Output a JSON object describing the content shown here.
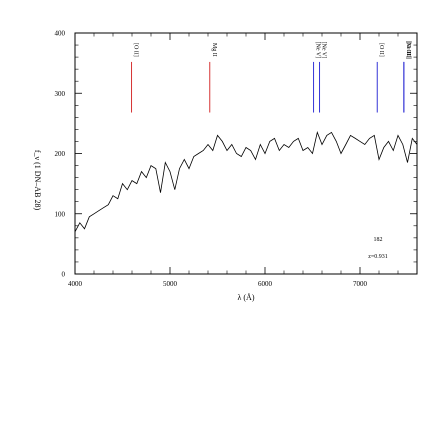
{
  "chart_data": {
    "type": "line",
    "title": "",
    "xlabel": "λ (Å)",
    "ylabel": "f_ν (1 DN–AB 28)",
    "xlim": [
      4000,
      7600
    ],
    "ylim": [
      0,
      400
    ],
    "x_ticks": [
      4000,
      5000,
      6000,
      7000
    ],
    "x_tick_labels": [
      "4000",
      "5000",
      "6000",
      "7000"
    ],
    "y_ticks": [
      0,
      100,
      200,
      300,
      400
    ],
    "y_tick_labels": [
      "0",
      "100",
      "200",
      "300",
      "400"
    ],
    "grid": false,
    "annotations": {
      "object_id": "182",
      "redshift": "z=0.931"
    },
    "line_colors": {
      "blue": "#0000cc",
      "red": "#cc0000",
      "spectrum": "#000000",
      "axes": "#000000"
    },
    "lines": [
      {
        "label": "[O II]",
        "x": 4596,
        "color": "red"
      },
      {
        "label": "Mg II",
        "x": 5419,
        "color": "red"
      },
      {
        "label": "[Ne V]",
        "x": 6512,
        "color": "blue"
      },
      {
        "label": "[Ne V]",
        "x": 6575,
        "color": "blue"
      },
      {
        "label": "[O II]",
        "x": 7181,
        "color": "blue"
      },
      {
        "label": "[O III]",
        "x": 7462,
        "color": "blue"
      },
      {
        "label": "[Ne III]",
        "x": 7461,
        "color": "blue"
      }
    ],
    "series": [
      {
        "x": [
          4000,
          4050,
          4100,
          4150,
          4200,
          4250,
          4300,
          4350,
          4400,
          4450,
          4500,
          4550,
          4600,
          4650,
          4700,
          4750,
          4800,
          4850,
          4900,
          4950,
          5000,
          5050,
          5100,
          5150,
          5200,
          5250,
          5300,
          5350,
          5400,
          5450,
          5500,
          5550,
          5600,
          5650,
          5700,
          5750,
          5800,
          5850,
          5900,
          5950,
          6000,
          6050,
          6100,
          6150,
          6200,
          6250,
          6300,
          6350,
          6400,
          6450,
          6500,
          6550,
          6600,
          6650,
          6700,
          6750,
          6800,
          6850,
          6900,
          6950,
          7000,
          7050,
          7100,
          7150,
          7200,
          7250,
          7300,
          7350,
          7400,
          7450,
          7500,
          7550,
          7600
        ],
        "y": [
          70,
          85,
          75,
          95,
          100,
          105,
          110,
          115,
          130,
          125,
          150,
          140,
          155,
          150,
          170,
          160,
          180,
          175,
          135,
          185,
          170,
          140,
          175,
          190,
          175,
          195,
          200,
          205,
          215,
          205,
          230,
          220,
          205,
          215,
          200,
          195,
          210,
          205,
          190,
          215,
          200,
          220,
          225,
          205,
          215,
          210,
          220,
          225,
          205,
          210,
          200,
          235,
          215,
          230,
          235,
          220,
          200,
          215,
          230,
          225,
          220,
          215,
          225,
          230,
          190,
          210,
          220,
          205,
          230,
          215,
          185,
          225,
          215
        ]
      }
    ]
  }
}
